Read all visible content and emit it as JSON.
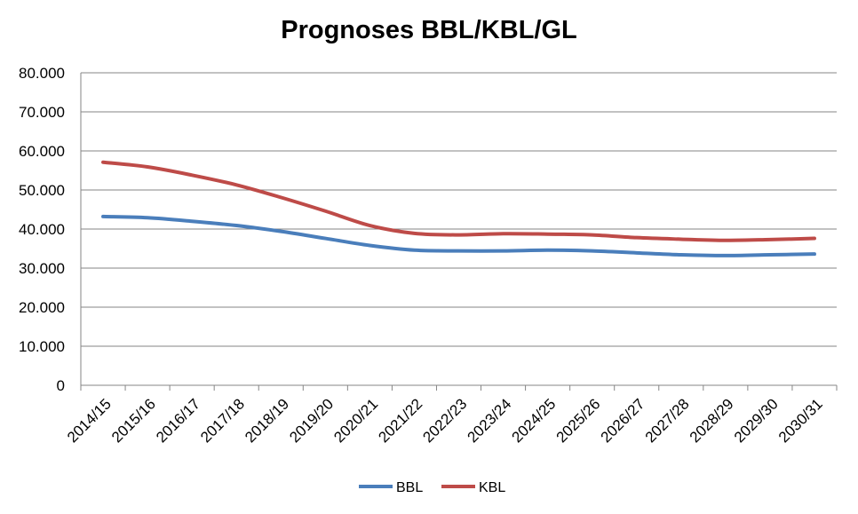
{
  "chart_data": {
    "type": "line",
    "title": "Prognoses BBL/KBL/GL",
    "xlabel": "",
    "ylabel": "",
    "categories": [
      "2014/15",
      "2015/16",
      "2016/17",
      "2017/18",
      "2018/19",
      "2019/20",
      "2020/21",
      "2021/22",
      "2022/23",
      "2023/24",
      "2024/25",
      "2025/26",
      "2026/27",
      "2027/28",
      "2028/29",
      "2029/30",
      "2030/31"
    ],
    "ylim": [
      0,
      80000
    ],
    "yticks": [
      0,
      10000,
      20000,
      30000,
      40000,
      50000,
      60000,
      70000,
      80000
    ],
    "ytick_labels": [
      "0",
      "10.000",
      "20.000",
      "30.000",
      "40.000",
      "50.000",
      "60.000",
      "70.000",
      "80.000"
    ],
    "grid": true,
    "legend_position": "bottom",
    "series": [
      {
        "name": "BBL",
        "color": "#4a7ebb",
        "values": [
          43200,
          42900,
          42000,
          40900,
          39400,
          37600,
          35800,
          34600,
          34400,
          34400,
          34600,
          34400,
          33900,
          33400,
          33200,
          33400,
          33600
        ]
      },
      {
        "name": "KBL",
        "color": "#be4b48",
        "values": [
          57100,
          55900,
          53800,
          51300,
          48100,
          44600,
          40900,
          38900,
          38500,
          38800,
          38700,
          38500,
          37800,
          37400,
          37100,
          37300,
          37600
        ]
      }
    ]
  }
}
